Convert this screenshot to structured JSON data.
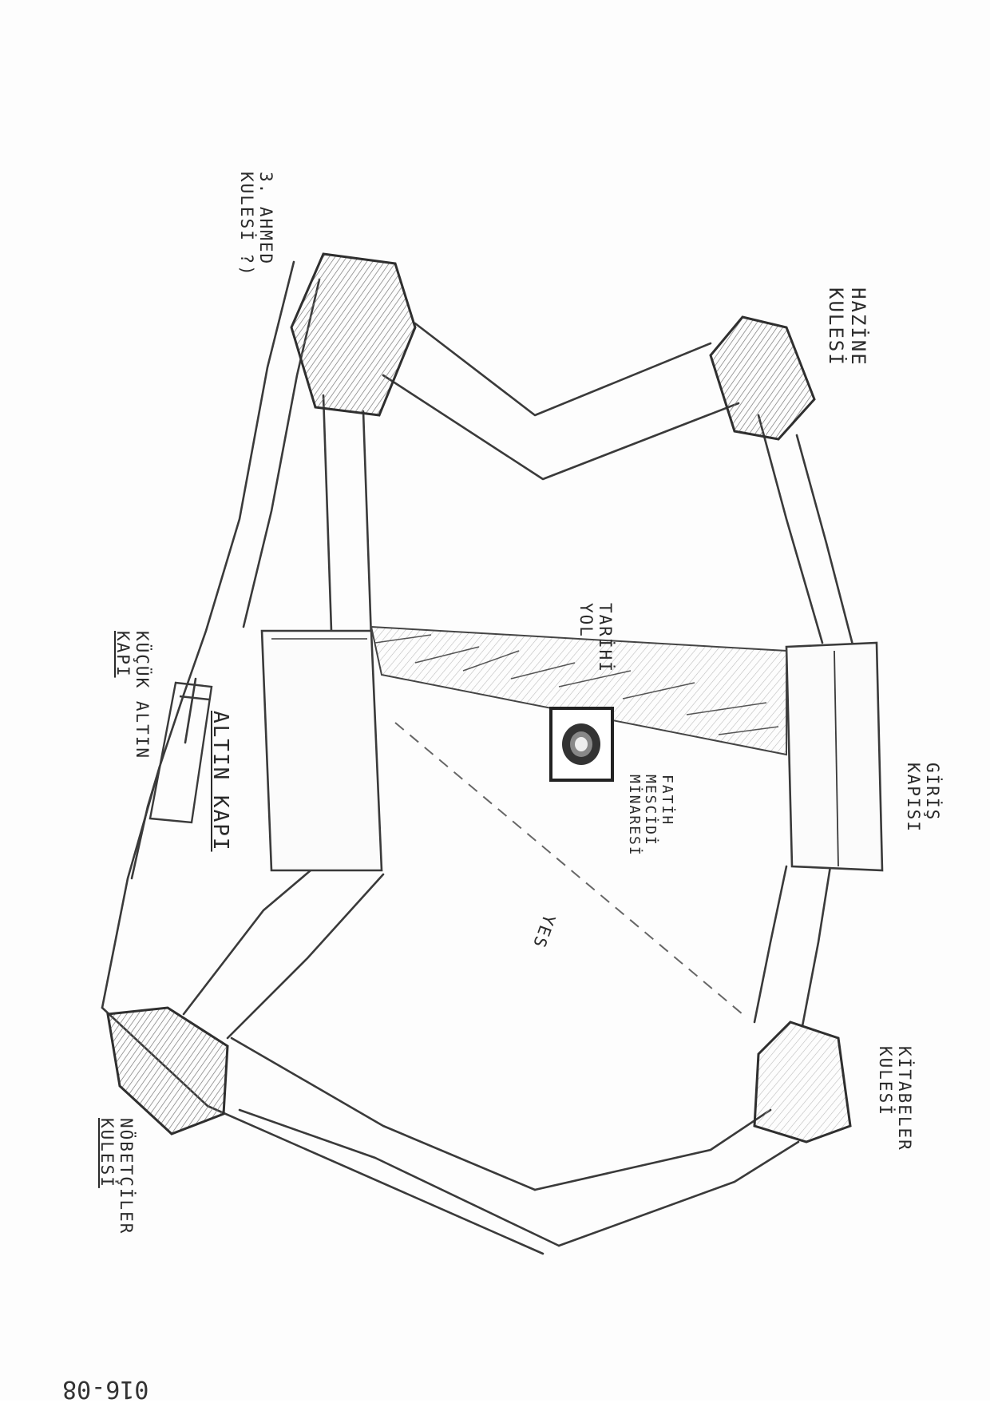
{
  "sketch": {
    "page_number": "016-08",
    "labels": {
      "ahmed_tower": [
        "3. AHMED",
        "KULESİ ?)"
      ],
      "hazine_tower": [
        "HAZİNE",
        "KULESİ"
      ],
      "kucuk_altin_kapi": [
        "KÜÇÜK ALTIN",
        "KAPI"
      ],
      "altin_kapi": "ALTIN KAPI",
      "tarihi_yol": [
        "TARİHİ",
        "YOL"
      ],
      "fatih_minaresi": [
        "FATİH",
        "MESCİDİ",
        "MİNARESİ"
      ],
      "giris_kapisi": [
        "GİRİŞ",
        "KAPISI"
      ],
      "yes": "YES",
      "nobetciler_tower": [
        "NÖBETÇİLER",
        "KULESİ"
      ],
      "kitabeler_tower": [
        "KİTABELER",
        "KULESİ"
      ]
    }
  }
}
